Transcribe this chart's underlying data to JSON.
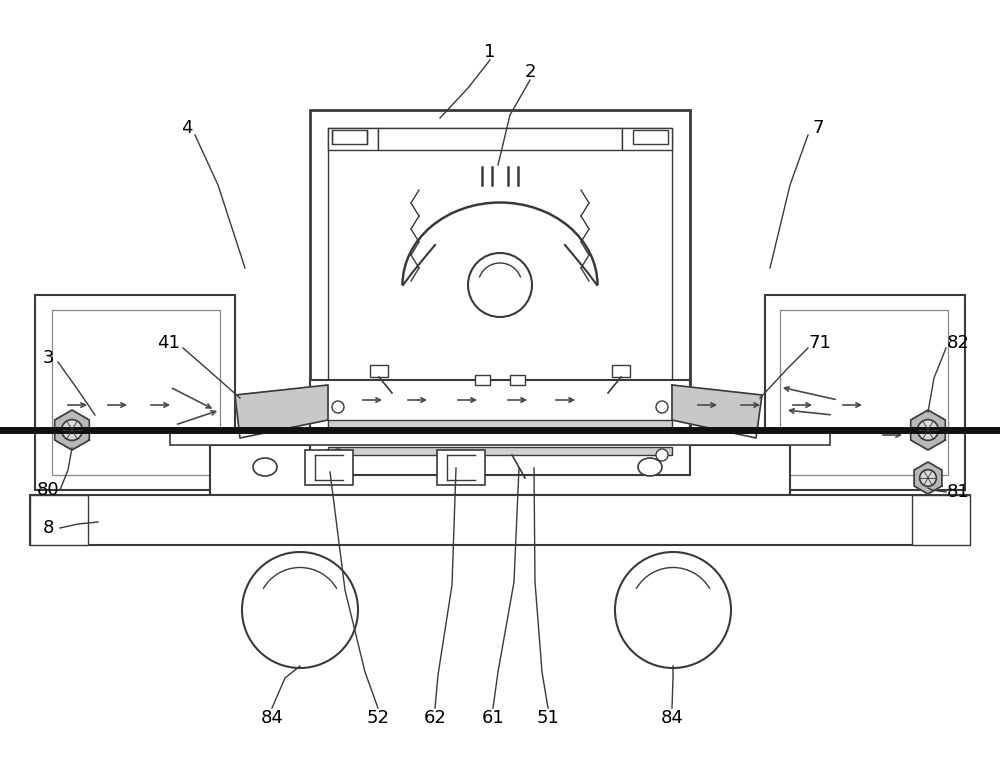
{
  "bg_color": "#ffffff",
  "line_color": "#3a3a3a",
  "light_line_color": "#888888",
  "arrow_color": "#4a4a4a",
  "figsize": [
    10.0,
    7.67
  ],
  "dpi": 100
}
